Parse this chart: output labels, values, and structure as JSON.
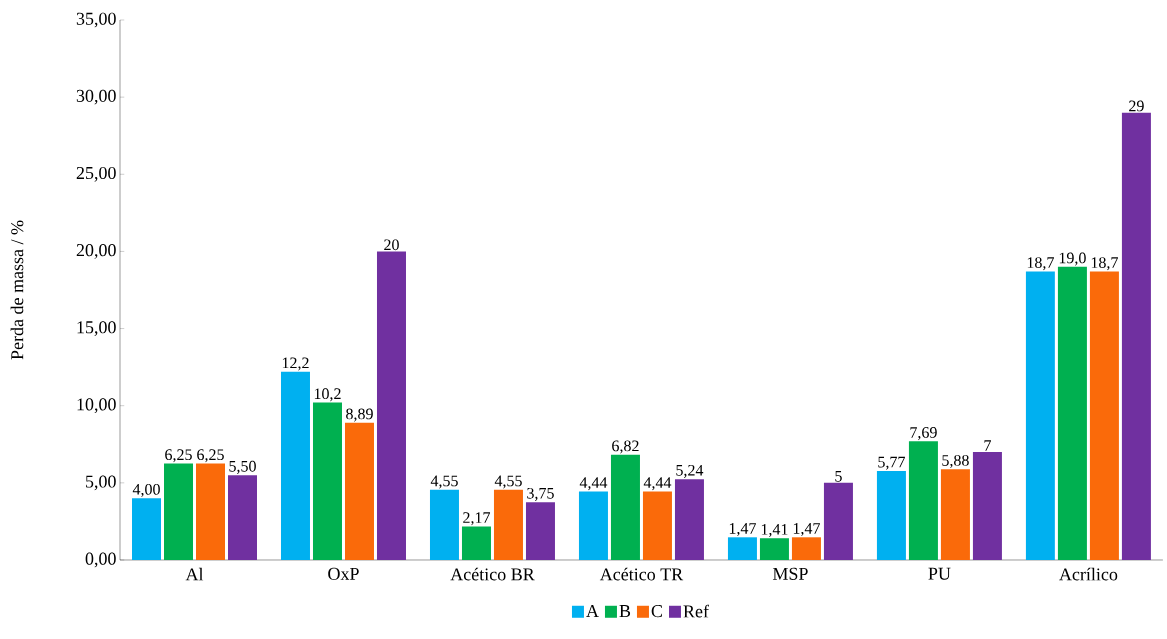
{
  "chart_data": {
    "type": "bar",
    "ylabel": "Perda de massa / %",
    "categories": [
      "Al",
      "OxP",
      "Acético BR",
      "Acético TR",
      "MSP",
      "PU",
      "Acrílico"
    ],
    "series": [
      {
        "name": "A",
        "color": "#00b0f0",
        "values": [
          4.0,
          12.2,
          4.55,
          4.44,
          1.47,
          5.77,
          18.7
        ],
        "value_labels": [
          "4,00",
          "12,2",
          "4,55",
          "4,44",
          "1,47",
          "5,77",
          "18,7"
        ]
      },
      {
        "name": "B",
        "color": "#00b050",
        "values": [
          6.25,
          10.2,
          2.17,
          6.82,
          1.41,
          7.69,
          19.0
        ],
        "value_labels": [
          "6,25",
          "10,2",
          "2,17",
          "6,82",
          "1,41",
          "7,69",
          "19,0"
        ]
      },
      {
        "name": "C",
        "color": "#fa6a0a",
        "values": [
          6.25,
          8.89,
          4.55,
          4.44,
          1.47,
          5.88,
          18.7
        ],
        "value_labels": [
          "6,25",
          "8,89",
          "4,55",
          "4,44",
          "1,47",
          "5,88",
          "18,7"
        ]
      },
      {
        "name": "Ref",
        "color": "#7030a0",
        "values": [
          5.5,
          20,
          3.75,
          5.24,
          5,
          7,
          29
        ],
        "value_labels": [
          "5,50",
          "20",
          "3,75",
          "5,24",
          "5",
          "7",
          "29"
        ]
      }
    ],
    "ylim": [
      0,
      35
    ],
    "yticks": [
      {
        "value": 0,
        "label": "0,00"
      },
      {
        "value": 5,
        "label": "5,00"
      },
      {
        "value": 10,
        "label": "10,00"
      },
      {
        "value": 15,
        "label": "15,00"
      },
      {
        "value": 20,
        "label": "20,00"
      },
      {
        "value": 25,
        "label": "25,00"
      },
      {
        "value": 30,
        "label": "30,00"
      },
      {
        "value": 35,
        "label": "35,00"
      }
    ],
    "grid": false,
    "legend": "bottom"
  }
}
